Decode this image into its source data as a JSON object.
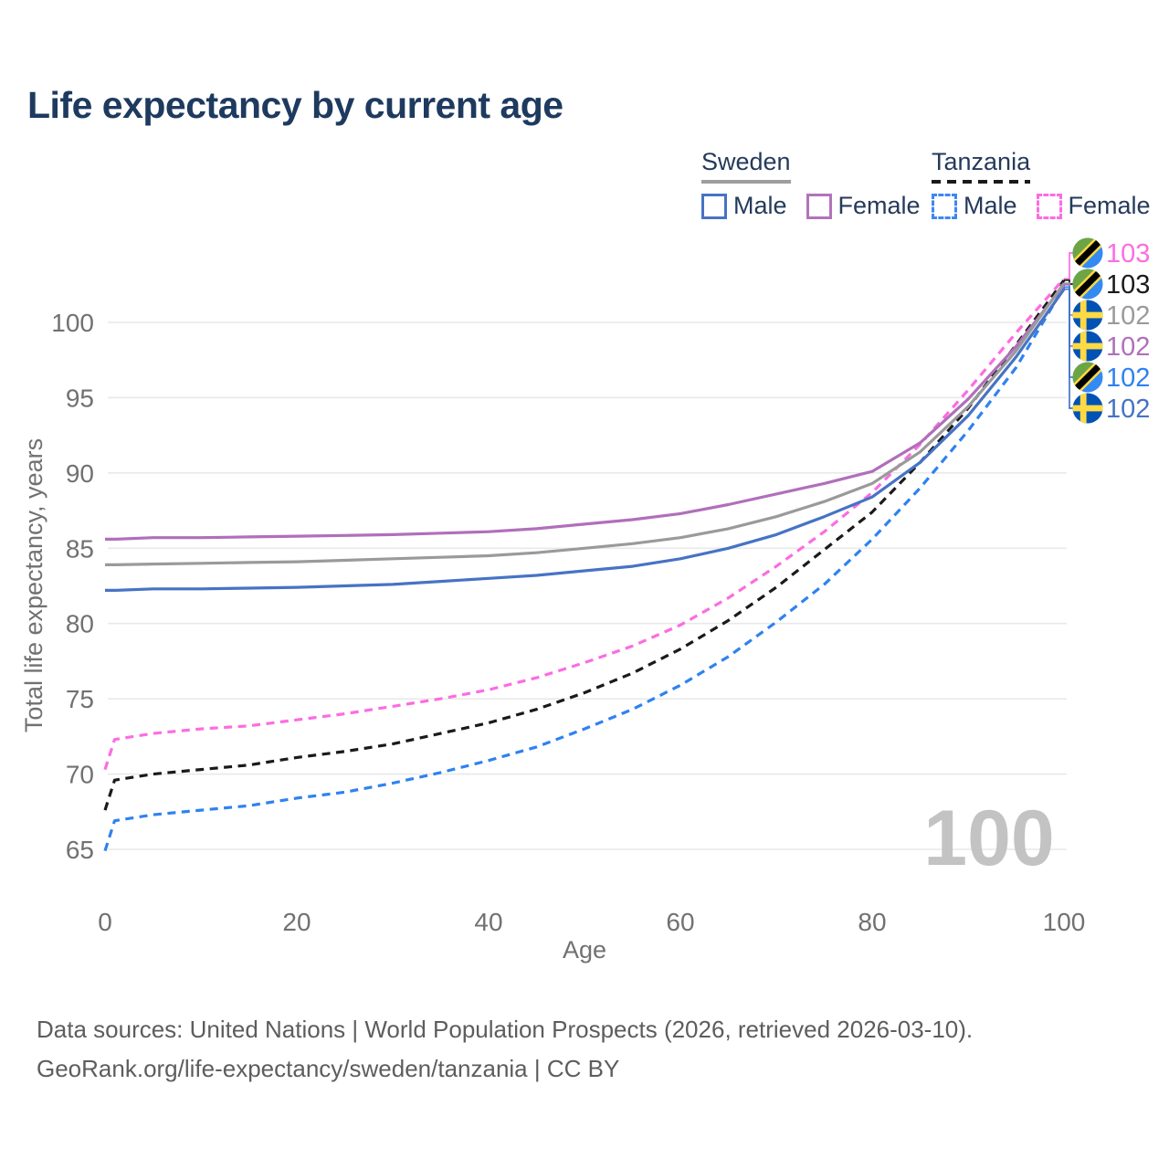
{
  "title": "Life expectancy by current age",
  "colors": {
    "title": "#1e3a5f",
    "legend_text": "#253a5b",
    "axis_text": "#717171",
    "gridline": "#e9e9e9",
    "watermark": "#c3c3c3",
    "footer_text": "#5d5d5d",
    "flag_sweden_blue": "#0052B4",
    "flag_yellow": "#FFDA44",
    "flag_tanzania_green": "#6DA544",
    "flag_tanzania_blue": "#338AF3",
    "flag_tanzania_black": "#000000"
  },
  "legend": {
    "groups": [
      {
        "name": "Sweden",
        "underline_style": "solid",
        "underline_color": "#9e9e9e",
        "items": [
          {
            "label": "Male",
            "box_color": "#4673c4",
            "box_style": "solid"
          },
          {
            "label": "Female",
            "box_color": "#b273bb",
            "box_style": "solid"
          }
        ]
      },
      {
        "name": "Tanzania",
        "underline_style": "dashed",
        "underline_color": "#1a1a1a",
        "items": [
          {
            "label": "Male",
            "box_color": "#3e87f2",
            "box_style": "dashed"
          },
          {
            "label": "Female",
            "box_color": "#fc6ce2",
            "box_style": "dashed"
          }
        ]
      }
    ]
  },
  "chart_data": {
    "type": "line",
    "title": "Life expectancy by current age",
    "xlabel": "Age",
    "ylabel": "Total life expectancy, years",
    "x_ticks": [
      0,
      20,
      40,
      60,
      80,
      100
    ],
    "y_ticks": [
      65,
      70,
      75,
      80,
      85,
      90,
      95,
      100
    ],
    "xlim": [
      0,
      100
    ],
    "ylim": [
      64.5,
      103.5
    ],
    "grid": "horizontal",
    "legend_position": "top-right",
    "age_watermark": "100",
    "ages": [
      0,
      1,
      5,
      10,
      15,
      20,
      25,
      30,
      35,
      40,
      45,
      50,
      55,
      60,
      65,
      70,
      75,
      80,
      85,
      90,
      95,
      100
    ],
    "series": [
      {
        "id": "tz-female",
        "name": "Tanzania Female",
        "country": "tanzania",
        "sex": "Female",
        "color": "#fc6ce2",
        "dashed": true,
        "end_label": "103",
        "values": [
          70.3,
          72.3,
          72.7,
          73.0,
          73.2,
          73.6,
          74.0,
          74.5,
          75.0,
          75.6,
          76.4,
          77.4,
          78.5,
          79.9,
          81.7,
          83.8,
          86.1,
          88.7,
          91.9,
          95.5,
          99.3,
          102.9
        ]
      },
      {
        "id": "tz-total",
        "name": "Tanzania",
        "country": "tanzania",
        "sex": "Both",
        "color": "#1a1a1a",
        "dashed": true,
        "end_label": "103",
        "values": [
          67.6,
          69.6,
          70.0,
          70.3,
          70.6,
          71.1,
          71.5,
          72.0,
          72.7,
          73.4,
          74.3,
          75.4,
          76.7,
          78.3,
          80.2,
          82.4,
          84.9,
          87.4,
          90.7,
          94.3,
          98.5,
          102.8
        ]
      },
      {
        "id": "se-total",
        "name": "Sweden",
        "country": "sweden",
        "sex": "Both",
        "color": "#9a9a9a",
        "dashed": false,
        "end_label": "102",
        "values": [
          83.9,
          83.9,
          83.95,
          84.0,
          84.05,
          84.1,
          84.2,
          84.3,
          84.4,
          84.5,
          84.7,
          85.0,
          85.3,
          85.7,
          86.3,
          87.1,
          88.1,
          89.3,
          91.4,
          94.4,
          98.1,
          102.6
        ]
      },
      {
        "id": "se-female",
        "name": "Sweden Female",
        "country": "sweden",
        "sex": "Female",
        "color": "#b06fba",
        "dashed": false,
        "end_label": "102",
        "values": [
          85.6,
          85.6,
          85.7,
          85.7,
          85.75,
          85.8,
          85.85,
          85.9,
          86.0,
          86.1,
          86.3,
          86.6,
          86.9,
          87.3,
          87.9,
          88.6,
          89.3,
          90.1,
          92.0,
          94.9,
          98.4,
          102.5
        ]
      },
      {
        "id": "tz-male",
        "name": "Tanzania Male",
        "country": "tanzania",
        "sex": "Male",
        "color": "#2e82f0",
        "dashed": true,
        "end_label": "102",
        "values": [
          64.9,
          66.9,
          67.3,
          67.6,
          67.9,
          68.4,
          68.8,
          69.4,
          70.1,
          70.9,
          71.8,
          73.0,
          74.3,
          75.9,
          77.8,
          80.1,
          82.6,
          85.6,
          89.0,
          92.8,
          97.0,
          102.35
        ]
      },
      {
        "id": "se-male",
        "name": "Sweden Male",
        "country": "sweden",
        "sex": "Male",
        "color": "#4673c4",
        "dashed": false,
        "end_label": "102",
        "values": [
          82.2,
          82.2,
          82.3,
          82.3,
          82.35,
          82.4,
          82.5,
          82.6,
          82.8,
          83.0,
          83.2,
          83.5,
          83.8,
          84.3,
          85.0,
          85.9,
          87.1,
          88.4,
          90.7,
          93.8,
          97.7,
          102.2
        ]
      }
    ]
  },
  "footer": {
    "line1": "Data sources: United Nations | World Population Prospects (2026, retrieved 2026-03-10).",
    "line2": "GeoRank.org/life-expectancy/sweden/tanzania | CC BY"
  }
}
